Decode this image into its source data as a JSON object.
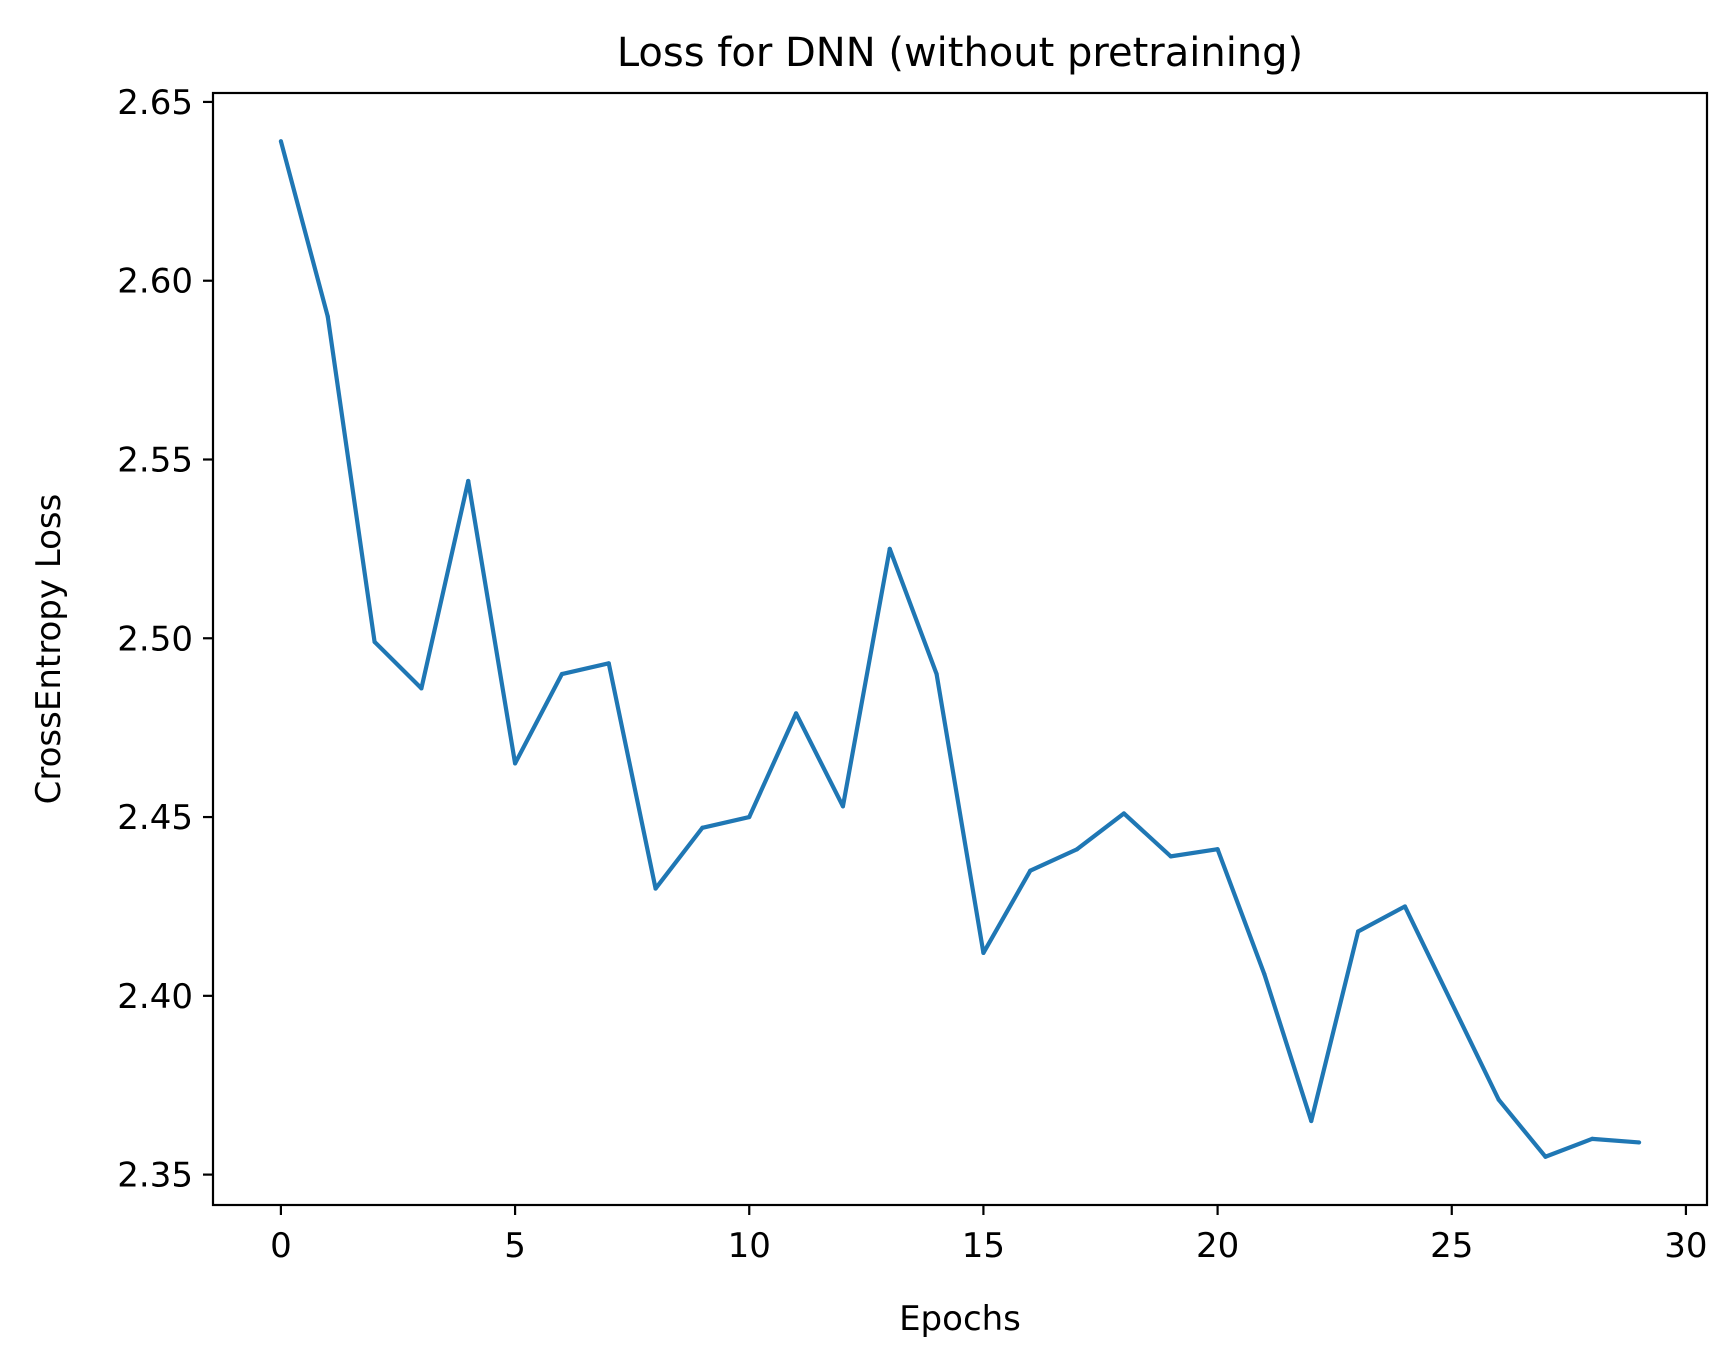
{
  "chart_data": {
    "type": "line",
    "title": "Loss for DNN (without pretraining)",
    "xlabel": "Epochs",
    "ylabel": "CrossEntropy Loss",
    "xlim": [
      -1.45,
      30.45
    ],
    "ylim": [
      2.3415,
      2.6525
    ],
    "xticks": [
      0,
      5,
      10,
      15,
      20,
      25,
      30
    ],
    "xtick_labels": [
      "0",
      "5",
      "10",
      "15",
      "20",
      "25",
      "30"
    ],
    "yticks": [
      2.35,
      2.4,
      2.45,
      2.5,
      2.55,
      2.6,
      2.65
    ],
    "ytick_labels": [
      "2.35",
      "2.40",
      "2.45",
      "2.50",
      "2.55",
      "2.60",
      "2.65"
    ],
    "grid": false,
    "series": [
      {
        "color": "#1f77b4",
        "x": [
          0,
          1,
          2,
          3,
          4,
          5,
          6,
          7,
          8,
          9,
          10,
          11,
          12,
          13,
          14,
          15,
          16,
          17,
          18,
          19,
          20,
          21,
          22,
          23,
          24,
          25,
          26,
          27,
          28,
          29
        ],
        "values": [
          2.639,
          2.59,
          2.499,
          2.486,
          2.544,
          2.465,
          2.49,
          2.493,
          2.43,
          2.447,
          2.45,
          2.479,
          2.453,
          2.525,
          2.49,
          2.412,
          2.435,
          2.441,
          2.451,
          2.439,
          2.441,
          2.406,
          2.365,
          2.418,
          2.425,
          2.398,
          2.371,
          2.355,
          2.36,
          2.359
        ]
      }
    ]
  }
}
